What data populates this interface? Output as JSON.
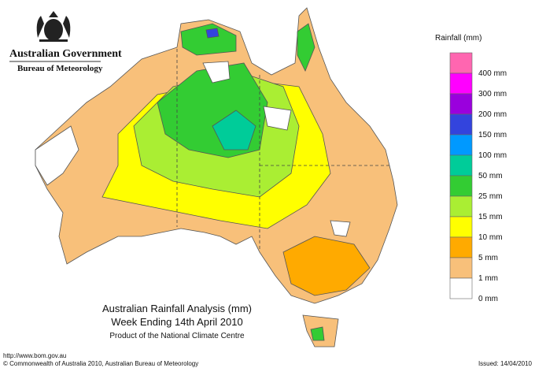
{
  "header": {
    "title": "Australian Government",
    "subtitle": "Bureau of Meteorology"
  },
  "legend": {
    "title": "Rainfall (mm)",
    "items": [
      {
        "color": "#ff66b0",
        "label": "400 mm"
      },
      {
        "color": "#ff00ff",
        "label": "300 mm"
      },
      {
        "color": "#9a00dd",
        "label": "200 mm"
      },
      {
        "color": "#3344dd",
        "label": "150 mm"
      },
      {
        "color": "#0099ff",
        "label": "100 mm"
      },
      {
        "color": "#00cc99",
        "label": "50 mm"
      },
      {
        "color": "#33cc33",
        "label": "25 mm"
      },
      {
        "color": "#aaee33",
        "label": "15 mm"
      },
      {
        "color": "#ffff00",
        "label": "10 mm"
      },
      {
        "color": "#ffaa00",
        "label": "5 mm"
      },
      {
        "color": "#f8c07a",
        "label": "1 mm"
      },
      {
        "color": "#ffffff",
        "label": "0 mm"
      }
    ]
  },
  "map": {
    "title": "Australian Rainfall Analysis (mm)",
    "subtitle": "Week Ending 14th April 2010",
    "credit": "Product of the National Climate Centre"
  },
  "footer": {
    "url": "http://www.bom.gov.au",
    "copyright": "© Commonwealth of Australia 2010, Australian Bureau of Meteorology",
    "issued": "Issued: 14/04/2010"
  }
}
